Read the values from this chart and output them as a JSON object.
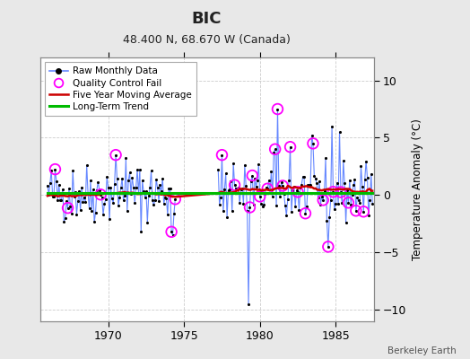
{
  "title": "BIC",
  "subtitle": "48.400 N, 68.670 W (Canada)",
  "ylabel": "Temperature Anomaly (°C)",
  "credit": "Berkeley Earth",
  "bg_color": "#e8e8e8",
  "plot_bg_color": "#ffffff",
  "grid_color": "#cccccc",
  "ylim": [
    -11,
    12
  ],
  "yticks": [
    -10,
    -5,
    0,
    5,
    10
  ],
  "xstart": 1965.5,
  "xend": 1987.5,
  "xticks": [
    1970,
    1975,
    1980,
    1985
  ],
  "raw_line_color": "#6688ff",
  "raw_dot_color": "#000000",
  "qc_color": "#ff00ff",
  "moving_avg_color": "#cc0000",
  "trend_color": "#00bb00",
  "trend_y": 0.18
}
